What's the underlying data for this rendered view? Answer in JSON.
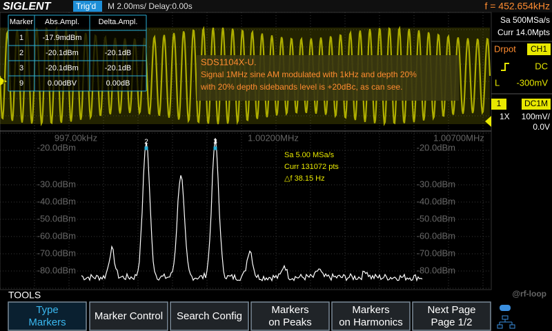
{
  "header": {
    "brand": "SIGLENT",
    "status": "Trig'd",
    "timebase": "M 2.00ms/ Delay:0.00s",
    "frequency": "f = 452.654kHz"
  },
  "marker_table": {
    "columns": [
      "Marker",
      "Abs.Ampl.",
      "Delta.Ampl."
    ],
    "rows": [
      {
        "marker": "1",
        "abs": "-17.9mdBm"
      },
      {
        "marker": "2",
        "abs": "-20.1dBm",
        "delta": "-20.1dB"
      },
      {
        "marker": "3",
        "abs": "-20.1dBm",
        "delta": "-20.1dB"
      },
      {
        "marker": "9",
        "abs": "0.00dBV",
        "delta": "0.00dB"
      }
    ]
  },
  "annotation": {
    "title": "SDS1104X-U.",
    "lines": [
      "Signal 1MHz sine AM modulated with 1kHz and depth 20%",
      "with 20% depth sidebands level is +20dBc, as can see."
    ]
  },
  "channel_marker": "1",
  "right_panel": {
    "sample_rate": "Sa 500MSa/s",
    "memory": "Curr 14.0Mpts",
    "trigger_label": "Drpot",
    "trigger_source": "CH1",
    "coupling": "DC",
    "level_label": "L",
    "level": "-300mV",
    "channel": "1",
    "channel_coupling": "DC1M",
    "probe": "1X",
    "scale": "100mV/",
    "offset": "0.0V"
  },
  "fft": {
    "x_labels": [
      "997.00kHz",
      "1.00200MHz",
      "1.00700MHz"
    ],
    "y_labels": [
      "-20.0dBm",
      "-30.0dBm",
      "-40.0dBm",
      "-50.0dBm",
      "-60.0dBm",
      "-70.0dBm",
      "-80.0dBm"
    ],
    "info": [
      "Sa 5.00 MSa/s",
      "Curr 131072 pts",
      "△f 38.15 Hz"
    ],
    "marker_labels": [
      "2",
      "3"
    ]
  },
  "tools": {
    "title": "TOOLS",
    "watermark": "@rf-loop",
    "softkeys": [
      [
        "Type",
        "Markers"
      ],
      [
        "Marker Control"
      ],
      [
        "Search Config"
      ],
      [
        "Markers",
        "on Peaks"
      ],
      [
        "Markers",
        "on Harmonics"
      ],
      [
        "Next Page",
        "Page 1/2"
      ]
    ]
  }
}
